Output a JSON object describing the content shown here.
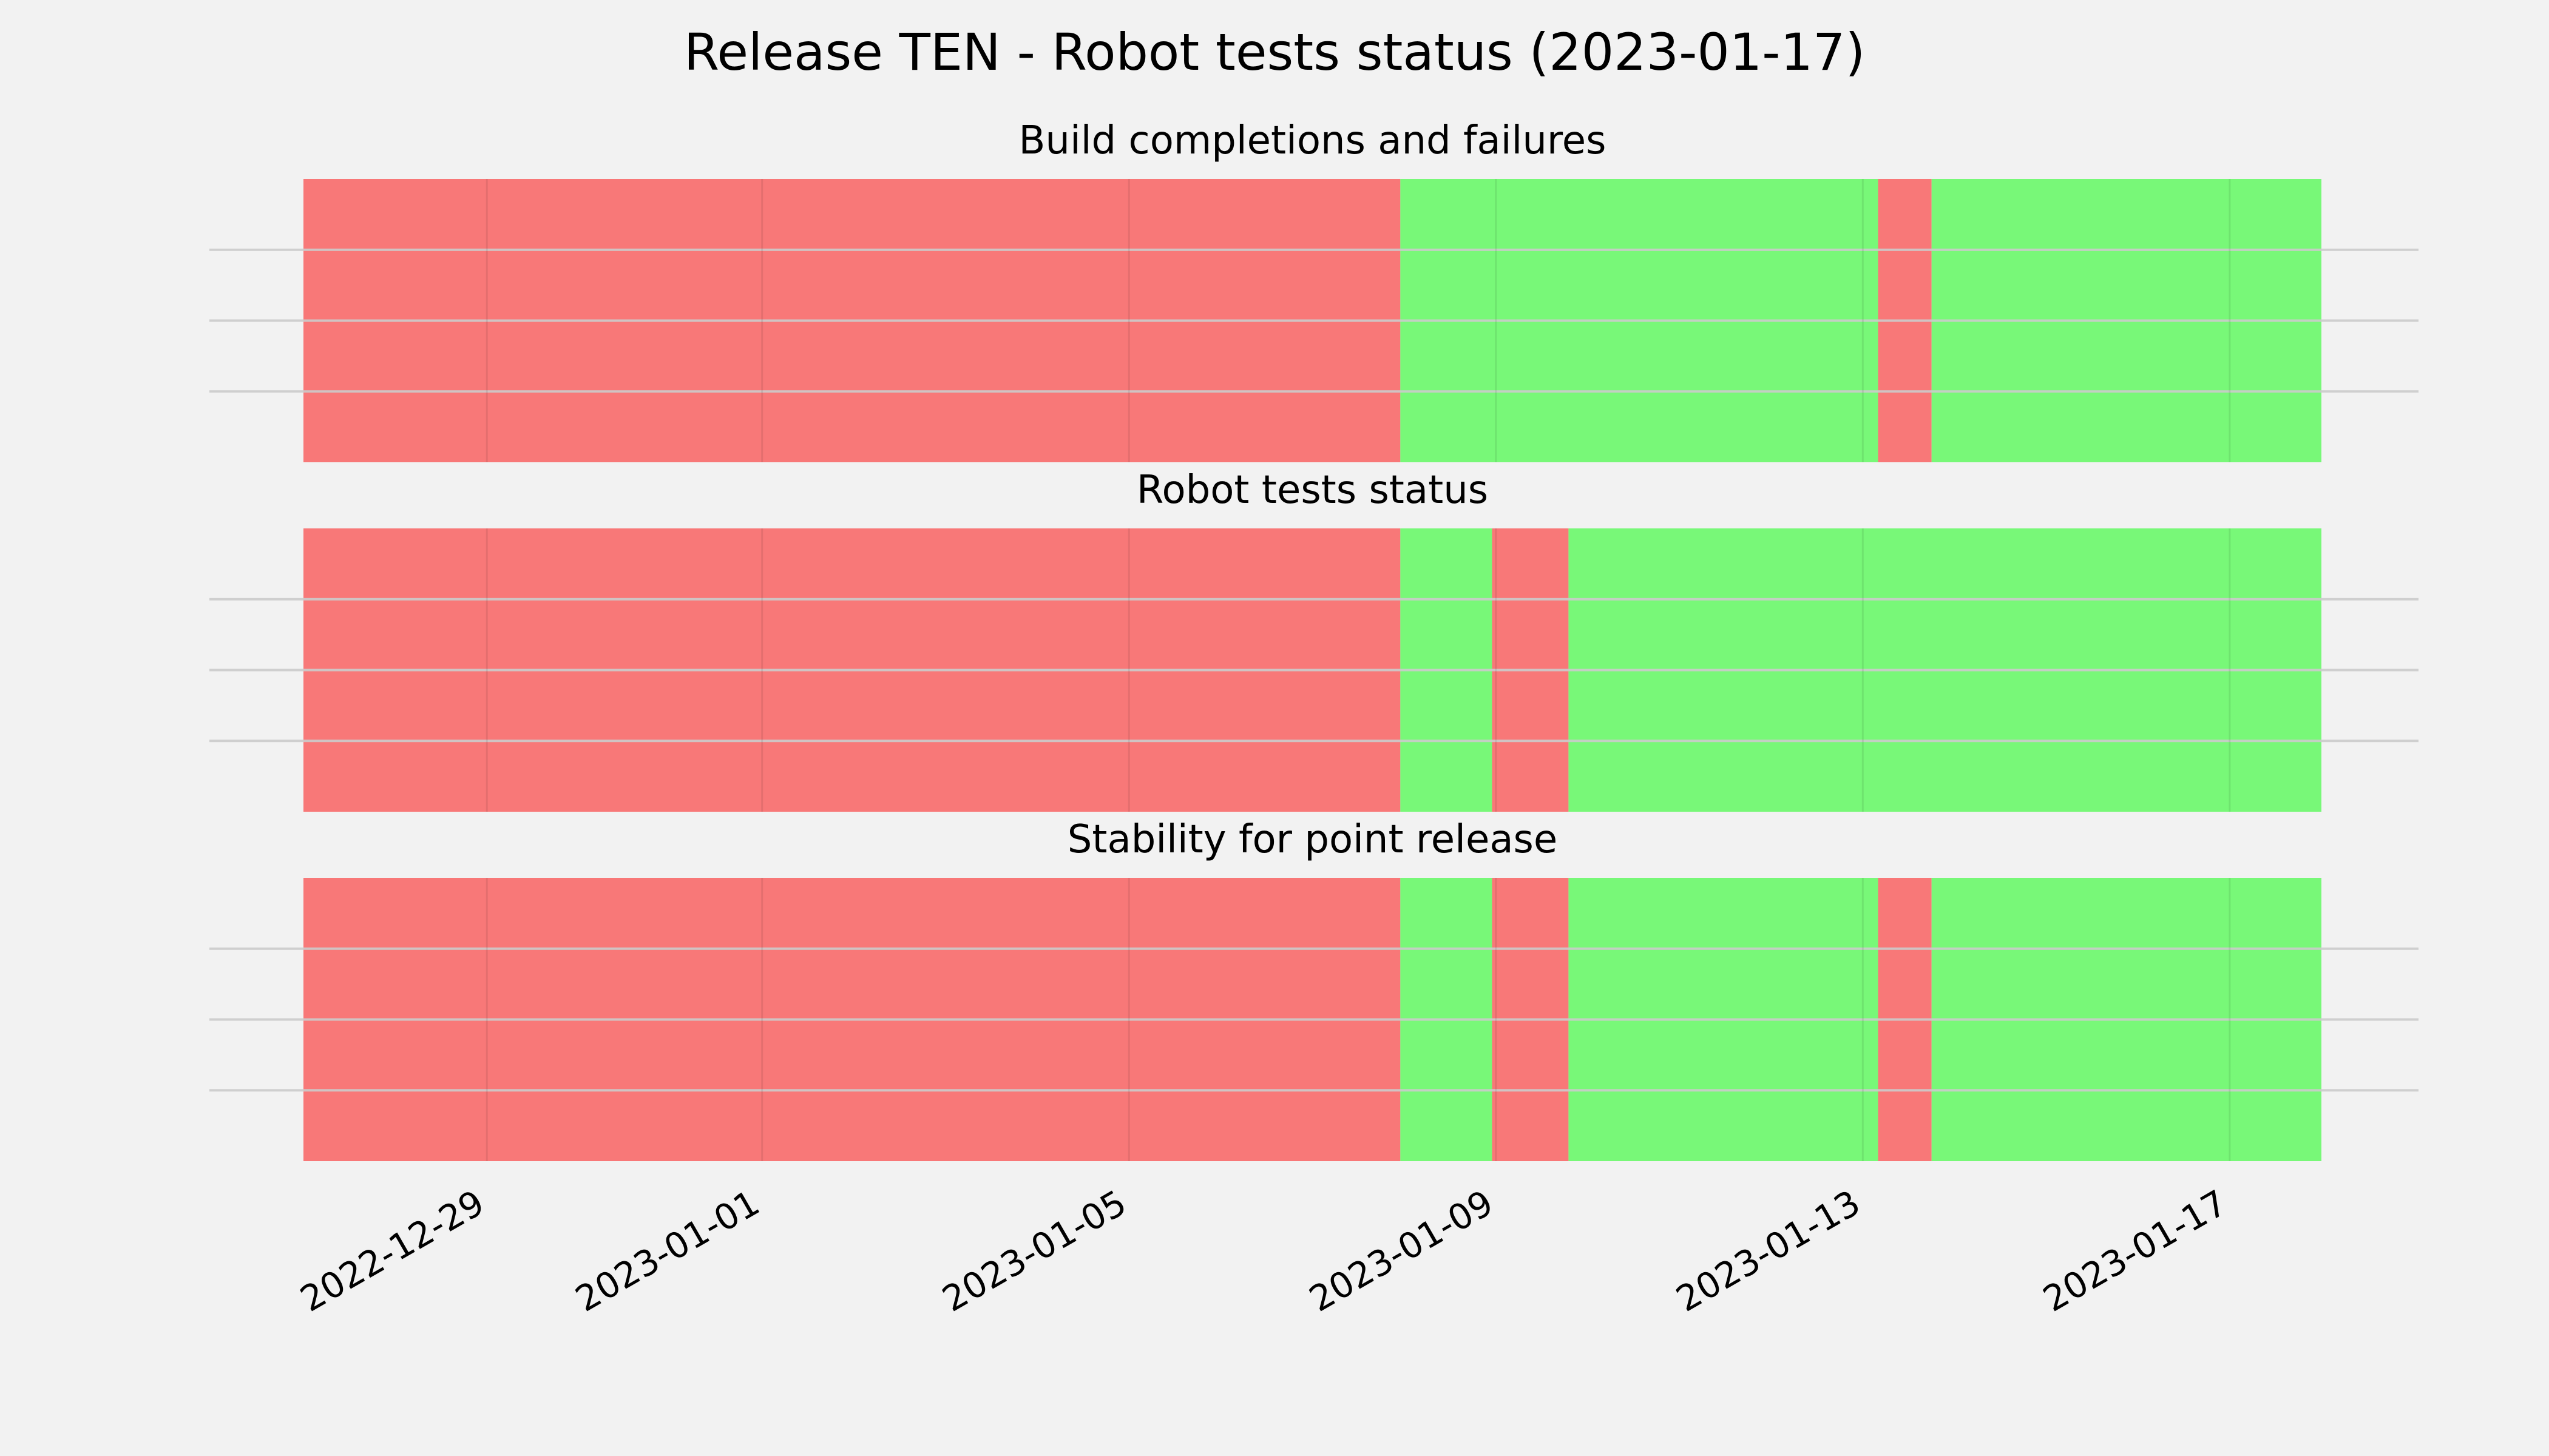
{
  "chart_data": {
    "type": "timeline",
    "title": "Release TEN - Robot tests status (2023-01-17)",
    "x_range": [
      "2022-12-27",
      "2023-01-18"
    ],
    "x_ticks": [
      "2022-12-29",
      "2023-01-01",
      "2023-01-05",
      "2023-01-09",
      "2023-01-13",
      "2023-01-17"
    ],
    "grid": true,
    "colors": {
      "fail": "#f87878",
      "pass": "#78f878",
      "background": "#f2f2f2",
      "grid": "#cbcbcb"
    },
    "panels": [
      {
        "title": "Build completions and failures",
        "segments": [
          {
            "start": "2022-12-27",
            "end": "2023-01-07T23:00",
            "status": "fail"
          },
          {
            "start": "2023-01-07T23:00",
            "end": "2023-01-13T04:00",
            "status": "pass"
          },
          {
            "start": "2023-01-13T04:00",
            "end": "2023-01-13T18:00",
            "status": "fail"
          },
          {
            "start": "2023-01-13T18:00",
            "end": "2023-01-18",
            "status": "pass"
          }
        ]
      },
      {
        "title": "Robot tests status",
        "segments": [
          {
            "start": "2022-12-27",
            "end": "2023-01-07T23:00",
            "status": "fail"
          },
          {
            "start": "2023-01-07T23:00",
            "end": "2023-01-08T23:00",
            "status": "pass"
          },
          {
            "start": "2023-01-08T23:00",
            "end": "2023-01-09T19:00",
            "status": "fail"
          },
          {
            "start": "2023-01-09T19:00",
            "end": "2023-01-18",
            "status": "pass"
          }
        ]
      },
      {
        "title": "Stability for point release",
        "segments": [
          {
            "start": "2022-12-27",
            "end": "2023-01-07T23:00",
            "status": "fail"
          },
          {
            "start": "2023-01-07T23:00",
            "end": "2023-01-08T23:00",
            "status": "pass"
          },
          {
            "start": "2023-01-08T23:00",
            "end": "2023-01-09T19:00",
            "status": "fail"
          },
          {
            "start": "2023-01-09T19:00",
            "end": "2023-01-13T04:00",
            "status": "pass"
          },
          {
            "start": "2023-01-13T04:00",
            "end": "2023-01-13T18:00",
            "status": "fail"
          },
          {
            "start": "2023-01-13T18:00",
            "end": "2023-01-18",
            "status": "pass"
          }
        ]
      }
    ]
  }
}
